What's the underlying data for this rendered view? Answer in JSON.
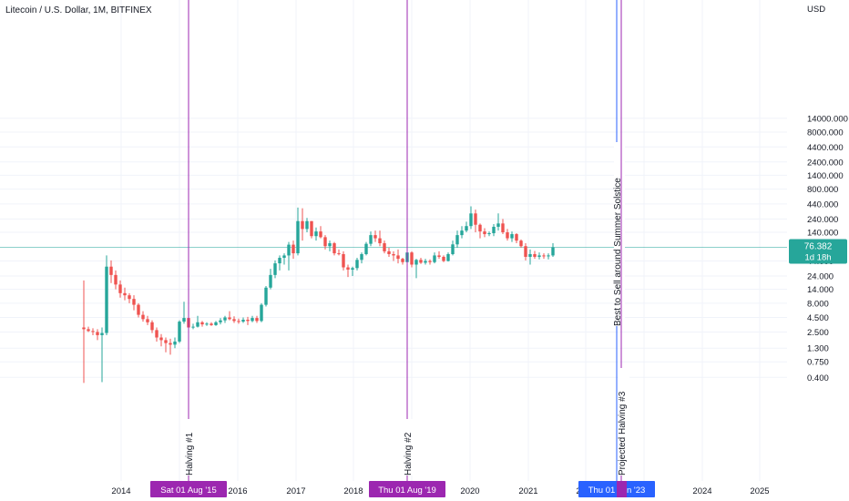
{
  "header": {
    "symbol_title": "Litecoin / U.S. Dollar, 1M, BITFINEX"
  },
  "chart_data": {
    "type": "candlestick",
    "title": "Litecoin / U.S. Dollar, 1M, BITFINEX",
    "currency_label": "USD",
    "scale": "log",
    "ylim": [
      0.3,
      18000
    ],
    "y_ticks": [
      "14000.000",
      "8000.000",
      "4400.000",
      "2400.000",
      "1400.000",
      "800.000",
      "440.000",
      "240.000",
      "140.000",
      "76.382",
      "44.000",
      "24.000",
      "14.000",
      "8.000",
      "4.500",
      "2.500",
      "1.300",
      "0.750",
      "0.400"
    ],
    "x_ticks": [
      "2014",
      "2015",
      "2016",
      "2017",
      "2018",
      "2019",
      "2020",
      "2021",
      "2022",
      "2023",
      "2024",
      "2025"
    ],
    "last_price": "76.382",
    "countdown": "1d 18h",
    "colors": {
      "up": "#26a69a",
      "down": "#ef5350",
      "halving_line": "#9c27b0",
      "solstice_line": "#2962ff",
      "price_line": "#26a69a"
    },
    "candles": [
      {
        "o": 3.0,
        "h": 20,
        "l": 0.32,
        "c": 2.8
      },
      {
        "o": 2.8,
        "h": 3.1,
        "l": 2.5,
        "c": 2.6
      },
      {
        "o": 2.6,
        "h": 2.9,
        "l": 2.2,
        "c": 2.5
      },
      {
        "o": 2.5,
        "h": 2.8,
        "l": 1.8,
        "c": 2.2
      },
      {
        "o": 2.2,
        "h": 3.0,
        "l": 0.33,
        "c": 2.4
      },
      {
        "o": 2.4,
        "h": 55,
        "l": 2.2,
        "c": 35
      },
      {
        "o": 35,
        "h": 45,
        "l": 18,
        "c": 25
      },
      {
        "o": 25,
        "h": 30,
        "l": 14,
        "c": 17
      },
      {
        "o": 17,
        "h": 20,
        "l": 10,
        "c": 12
      },
      {
        "o": 12,
        "h": 15,
        "l": 9,
        "c": 11
      },
      {
        "o": 11,
        "h": 12,
        "l": 8,
        "c": 9.5
      },
      {
        "o": 9.5,
        "h": 11,
        "l": 6,
        "c": 7.5
      },
      {
        "o": 7.5,
        "h": 8,
        "l": 4.5,
        "c": 5
      },
      {
        "o": 5,
        "h": 5.8,
        "l": 3.8,
        "c": 4.2
      },
      {
        "o": 4.2,
        "h": 4.8,
        "l": 3.3,
        "c": 3.7
      },
      {
        "o": 3.7,
        "h": 4.0,
        "l": 2.4,
        "c": 2.7
      },
      {
        "o": 2.7,
        "h": 3.0,
        "l": 1.7,
        "c": 2.0
      },
      {
        "o": 2.0,
        "h": 2.3,
        "l": 1.4,
        "c": 1.8
      },
      {
        "o": 1.8,
        "h": 2.0,
        "l": 1.1,
        "c": 1.6
      },
      {
        "o": 1.6,
        "h": 1.9,
        "l": 1.0,
        "c": 1.5
      },
      {
        "o": 1.5,
        "h": 2.0,
        "l": 1.3,
        "c": 1.7
      },
      {
        "o": 1.7,
        "h": 4.0,
        "l": 1.6,
        "c": 3.8
      },
      {
        "o": 3.8,
        "h": 8.5,
        "l": 3.5,
        "c": 4.4
      },
      {
        "o": 4.4,
        "h": 4.8,
        "l": 2.6,
        "c": 3.0
      },
      {
        "o": 3.0,
        "h": 3.5,
        "l": 2.8,
        "c": 3.1
      },
      {
        "o": 3.1,
        "h": 4.8,
        "l": 3.0,
        "c": 3.7
      },
      {
        "o": 3.7,
        "h": 3.9,
        "l": 3.1,
        "c": 3.4
      },
      {
        "o": 3.4,
        "h": 3.7,
        "l": 3.2,
        "c": 3.5
      },
      {
        "o": 3.5,
        "h": 3.7,
        "l": 3.2,
        "c": 3.3
      },
      {
        "o": 3.3,
        "h": 3.9,
        "l": 3.2,
        "c": 3.7
      },
      {
        "o": 3.7,
        "h": 4.4,
        "l": 3.4,
        "c": 4.0
      },
      {
        "o": 4.0,
        "h": 4.8,
        "l": 3.6,
        "c": 4.5
      },
      {
        "o": 4.5,
        "h": 5.8,
        "l": 4.0,
        "c": 4.2
      },
      {
        "o": 4.2,
        "h": 4.7,
        "l": 3.6,
        "c": 3.9
      },
      {
        "o": 3.9,
        "h": 4.3,
        "l": 3.5,
        "c": 3.8
      },
      {
        "o": 3.8,
        "h": 4.5,
        "l": 3.6,
        "c": 4.1
      },
      {
        "o": 4.1,
        "h": 4.6,
        "l": 3.3,
        "c": 3.9
      },
      {
        "o": 3.9,
        "h": 4.8,
        "l": 3.7,
        "c": 4.4
      },
      {
        "o": 4.4,
        "h": 4.8,
        "l": 3.6,
        "c": 3.9
      },
      {
        "o": 3.9,
        "h": 8.0,
        "l": 3.7,
        "c": 7.5
      },
      {
        "o": 7.5,
        "h": 16,
        "l": 7.0,
        "c": 15
      },
      {
        "o": 15,
        "h": 32,
        "l": 14,
        "c": 25
      },
      {
        "o": 25,
        "h": 45,
        "l": 22,
        "c": 40
      },
      {
        "o": 40,
        "h": 55,
        "l": 30,
        "c": 50
      },
      {
        "o": 50,
        "h": 60,
        "l": 38,
        "c": 55
      },
      {
        "o": 55,
        "h": 95,
        "l": 30,
        "c": 85
      },
      {
        "o": 85,
        "h": 100,
        "l": 48,
        "c": 60
      },
      {
        "o": 60,
        "h": 380,
        "l": 55,
        "c": 220
      },
      {
        "o": 220,
        "h": 370,
        "l": 100,
        "c": 160
      },
      {
        "o": 160,
        "h": 250,
        "l": 140,
        "c": 220
      },
      {
        "o": 220,
        "h": 220,
        "l": 110,
        "c": 120
      },
      {
        "o": 120,
        "h": 170,
        "l": 100,
        "c": 145
      },
      {
        "o": 145,
        "h": 180,
        "l": 110,
        "c": 115
      },
      {
        "o": 115,
        "h": 125,
        "l": 70,
        "c": 80
      },
      {
        "o": 80,
        "h": 100,
        "l": 65,
        "c": 90
      },
      {
        "o": 90,
        "h": 95,
        "l": 55,
        "c": 60
      },
      {
        "o": 60,
        "h": 70,
        "l": 55,
        "c": 58
      },
      {
        "o": 58,
        "h": 65,
        "l": 30,
        "c": 34
      },
      {
        "o": 34,
        "h": 38,
        "l": 23,
        "c": 31
      },
      {
        "o": 31,
        "h": 35,
        "l": 24,
        "c": 33
      },
      {
        "o": 33,
        "h": 50,
        "l": 30,
        "c": 46
      },
      {
        "o": 46,
        "h": 62,
        "l": 40,
        "c": 58
      },
      {
        "o": 58,
        "h": 95,
        "l": 55,
        "c": 88
      },
      {
        "o": 88,
        "h": 145,
        "l": 80,
        "c": 125
      },
      {
        "o": 125,
        "h": 150,
        "l": 95,
        "c": 110
      },
      {
        "o": 110,
        "h": 150,
        "l": 80,
        "c": 90
      },
      {
        "o": 90,
        "h": 100,
        "l": 60,
        "c": 65
      },
      {
        "o": 65,
        "h": 75,
        "l": 52,
        "c": 58
      },
      {
        "o": 58,
        "h": 65,
        "l": 44,
        "c": 55
      },
      {
        "o": 55,
        "h": 70,
        "l": 40,
        "c": 48
      },
      {
        "o": 48,
        "h": 50,
        "l": 38,
        "c": 42
      },
      {
        "o": 42,
        "h": 70,
        "l": 40,
        "c": 62
      },
      {
        "o": 62,
        "h": 65,
        "l": 34,
        "c": 38
      },
      {
        "o": 38,
        "h": 48,
        "l": 22,
        "c": 46
      },
      {
        "o": 46,
        "h": 50,
        "l": 39,
        "c": 41
      },
      {
        "o": 41,
        "h": 48,
        "l": 38,
        "c": 44
      },
      {
        "o": 44,
        "h": 47,
        "l": 38,
        "c": 42
      },
      {
        "o": 42,
        "h": 62,
        "l": 40,
        "c": 55
      },
      {
        "o": 55,
        "h": 65,
        "l": 48,
        "c": 52
      },
      {
        "o": 52,
        "h": 55,
        "l": 42,
        "c": 44
      },
      {
        "o": 44,
        "h": 62,
        "l": 43,
        "c": 58
      },
      {
        "o": 58,
        "h": 100,
        "l": 55,
        "c": 86
      },
      {
        "o": 86,
        "h": 150,
        "l": 75,
        "c": 125
      },
      {
        "o": 125,
        "h": 180,
        "l": 110,
        "c": 150
      },
      {
        "o": 150,
        "h": 215,
        "l": 140,
        "c": 180
      },
      {
        "o": 180,
        "h": 400,
        "l": 160,
        "c": 300
      },
      {
        "o": 300,
        "h": 350,
        "l": 140,
        "c": 190
      },
      {
        "o": 190,
        "h": 200,
        "l": 110,
        "c": 145
      },
      {
        "o": 145,
        "h": 165,
        "l": 115,
        "c": 130
      },
      {
        "o": 130,
        "h": 145,
        "l": 120,
        "c": 135
      },
      {
        "o": 135,
        "h": 195,
        "l": 120,
        "c": 175
      },
      {
        "o": 175,
        "h": 300,
        "l": 150,
        "c": 200
      },
      {
        "o": 200,
        "h": 240,
        "l": 130,
        "c": 140
      },
      {
        "o": 140,
        "h": 160,
        "l": 100,
        "c": 110
      },
      {
        "o": 110,
        "h": 145,
        "l": 95,
        "c": 130
      },
      {
        "o": 130,
        "h": 135,
        "l": 90,
        "c": 100
      },
      {
        "o": 100,
        "h": 105,
        "l": 75,
        "c": 80
      },
      {
        "o": 80,
        "h": 90,
        "l": 45,
        "c": 52
      },
      {
        "o": 52,
        "h": 70,
        "l": 38,
        "c": 58
      },
      {
        "o": 58,
        "h": 66,
        "l": 48,
        "c": 52
      },
      {
        "o": 52,
        "h": 62,
        "l": 47,
        "c": 55
      },
      {
        "o": 55,
        "h": 60,
        "l": 48,
        "c": 53
      },
      {
        "o": 53,
        "h": 60,
        "l": 47,
        "c": 55
      },
      {
        "o": 55,
        "h": 90,
        "l": 52,
        "c": 76.382
      }
    ],
    "markers": [
      {
        "name": "Halving #1",
        "date_label": "Sat 01 Aug '15",
        "index": 23,
        "color": "#9c27b0"
      },
      {
        "name": "Halving #2",
        "date_label": "Thu 01 Aug '19",
        "index": 71,
        "color": "#9c27b0"
      },
      {
        "name": "Best to Sell around Summer Solstice",
        "date_label": "Thu 01 Jun '23",
        "index": 117,
        "color": "#2962ff"
      },
      {
        "name": "Projected Halving #3",
        "date_label": "",
        "index": 118,
        "color": "#9c27b0"
      }
    ]
  }
}
